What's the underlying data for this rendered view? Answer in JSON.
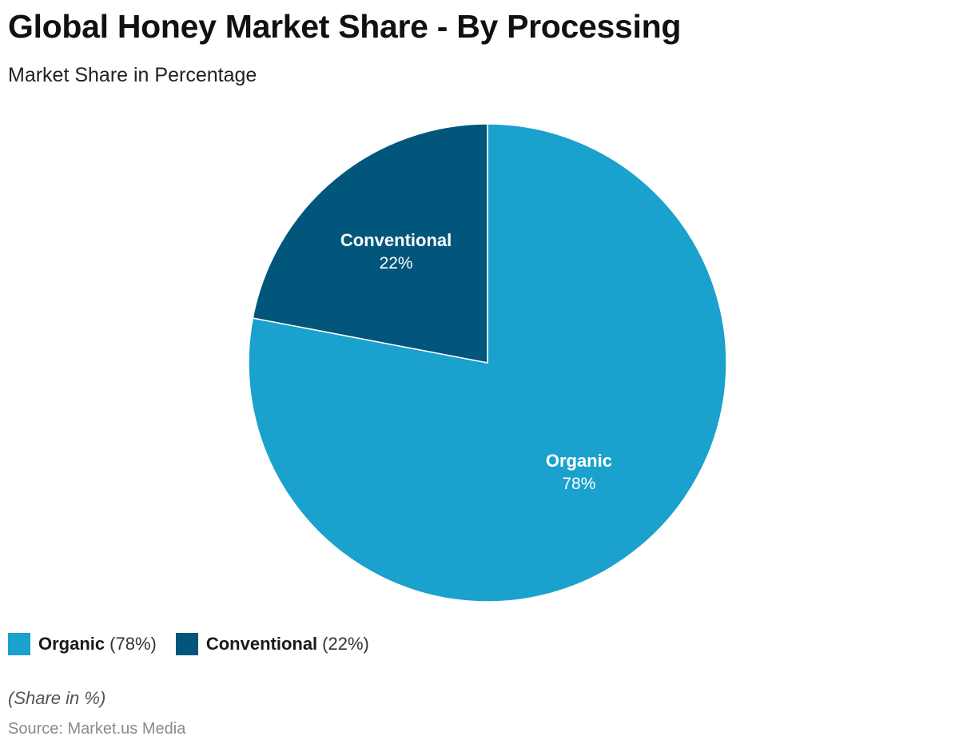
{
  "chart_data": {
    "type": "pie",
    "title": "Global Honey Market Share - By Processing",
    "subtitle": "Market Share in Percentage",
    "categories": [
      "Organic",
      "Conventional"
    ],
    "values": [
      78,
      22
    ],
    "value_labels": [
      "78%",
      "22%"
    ],
    "colors": [
      "#1aa1cd",
      "#02557b"
    ],
    "legend_labels": [
      "(78%)",
      "(22%)"
    ],
    "legend_position": "bottom-left",
    "note": "(Share in %)",
    "source": "Source: Market.us Media"
  }
}
